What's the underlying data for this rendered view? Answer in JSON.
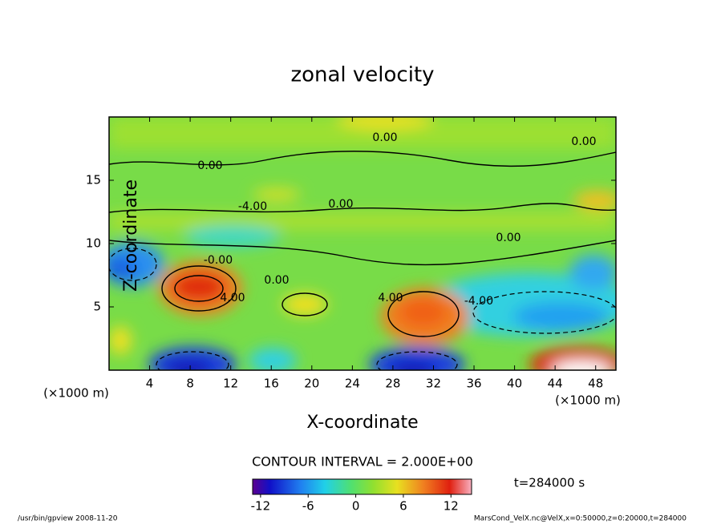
{
  "chart_data": {
    "type": "contour",
    "title": "zonal velocity",
    "x_label": "X-coordinate",
    "y_label": "Z-coordinate",
    "x_unit": "(×1000 m)",
    "xlim": [
      0,
      50
    ],
    "xticks": [
      4,
      8,
      12,
      16,
      20,
      24,
      28,
      32,
      36,
      40,
      44,
      48
    ],
    "ylim": [
      0,
      20
    ],
    "yticks": [
      5,
      10,
      15
    ],
    "contour_labels": [
      "0.00",
      "0.00",
      "0.00",
      "-4.00",
      "0.00",
      "0.00",
      "-0.00",
      "0.00",
      "4.00",
      "4.00",
      "-4.00"
    ],
    "contour_interval": "CONTOUR INTERVAL = 2.000E+00",
    "time_label": "t=284000 s",
    "colorbar": {
      "lim": [
        -13,
        14.6
      ],
      "ticks": [
        -12,
        -6,
        0,
        6,
        12
      ]
    },
    "footer_left": "/usr/bin/gpview   2008-11-20",
    "footer_right": "MarsCond_VelX.nc@VelX,x=0:50000,z=0:20000,t=284000"
  }
}
